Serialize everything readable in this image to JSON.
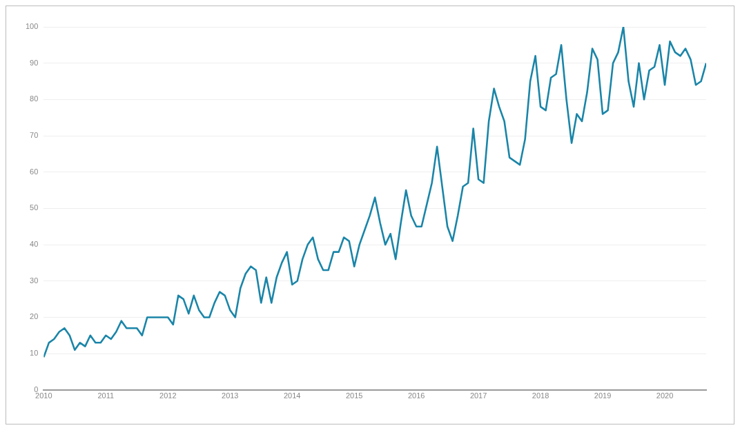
{
  "chart_data": {
    "type": "line",
    "x": [
      "2010-01",
      "2010-02",
      "2010-03",
      "2010-04",
      "2010-05",
      "2010-06",
      "2010-07",
      "2010-08",
      "2010-09",
      "2010-10",
      "2010-11",
      "2010-12",
      "2011-01",
      "2011-02",
      "2011-03",
      "2011-04",
      "2011-05",
      "2011-06",
      "2011-07",
      "2011-08",
      "2011-09",
      "2011-10",
      "2011-11",
      "2011-12",
      "2012-01",
      "2012-02",
      "2012-03",
      "2012-04",
      "2012-05",
      "2012-06",
      "2012-07",
      "2012-08",
      "2012-09",
      "2012-10",
      "2012-11",
      "2012-12",
      "2013-01",
      "2013-02",
      "2013-03",
      "2013-04",
      "2013-05",
      "2013-06",
      "2013-07",
      "2013-08",
      "2013-09",
      "2013-10",
      "2013-11",
      "2013-12",
      "2014-01",
      "2014-02",
      "2014-03",
      "2014-04",
      "2014-05",
      "2014-06",
      "2014-07",
      "2014-08",
      "2014-09",
      "2014-10",
      "2014-11",
      "2014-12",
      "2015-01",
      "2015-02",
      "2015-03",
      "2015-04",
      "2015-05",
      "2015-06",
      "2015-07",
      "2015-08",
      "2015-09",
      "2015-10",
      "2015-11",
      "2015-12",
      "2016-01",
      "2016-02",
      "2016-03",
      "2016-04",
      "2016-05",
      "2016-06",
      "2016-07",
      "2016-08",
      "2016-09",
      "2016-10",
      "2016-11",
      "2016-12",
      "2017-01",
      "2017-02",
      "2017-03",
      "2017-04",
      "2017-05",
      "2017-06",
      "2017-07",
      "2017-08",
      "2017-09",
      "2017-10",
      "2017-11",
      "2017-12",
      "2018-01",
      "2018-02",
      "2018-03",
      "2018-04",
      "2018-05",
      "2018-06",
      "2018-07",
      "2018-08",
      "2018-09",
      "2018-10",
      "2018-11",
      "2018-12",
      "2019-01",
      "2019-02",
      "2019-03",
      "2019-04",
      "2019-05",
      "2019-06",
      "2019-07",
      "2019-08",
      "2019-09",
      "2019-10",
      "2019-11",
      "2019-12",
      "2020-01",
      "2020-02",
      "2020-03",
      "2020-04",
      "2020-05",
      "2020-06",
      "2020-07",
      "2020-08",
      "2020-09"
    ],
    "series": [
      {
        "color": "#1a85a8",
        "values": [
          9,
          13,
          14,
          16,
          17,
          15,
          11,
          13,
          12,
          15,
          13,
          13,
          15,
          14,
          16,
          19,
          17,
          17,
          17,
          15,
          20,
          20,
          20,
          20,
          20,
          18,
          26,
          25,
          21,
          26,
          22,
          20,
          20,
          24,
          27,
          26,
          22,
          20,
          28,
          32,
          34,
          33,
          24,
          31,
          24,
          31,
          35,
          38,
          29,
          30,
          36,
          40,
          42,
          36,
          33,
          33,
          38,
          38,
          42,
          41,
          34,
          40,
          44,
          48,
          53,
          46,
          40,
          43,
          36,
          46,
          55,
          48,
          45,
          45,
          51,
          57,
          67,
          56,
          45,
          41,
          48,
          56,
          57,
          72,
          58,
          57,
          74,
          83,
          78,
          74,
          64,
          63,
          62,
          69,
          85,
          92,
          78,
          77,
          86,
          87,
          95,
          80,
          68,
          76,
          74,
          82,
          94,
          91,
          76,
          77,
          90,
          93,
          100,
          85,
          78,
          90,
          80,
          88,
          89,
          95,
          84,
          96,
          93,
          92,
          94,
          91,
          84,
          85,
          90
        ]
      }
    ],
    "xlim": [
      "2010-01",
      "2020-09"
    ],
    "xticks": [
      {
        "value": "2010",
        "label": "2010"
      },
      {
        "value": "2011",
        "label": "2011"
      },
      {
        "value": "2012",
        "label": "2012"
      },
      {
        "value": "2013",
        "label": "2013"
      },
      {
        "value": "2014",
        "label": "2014"
      },
      {
        "value": "2015",
        "label": "2015"
      },
      {
        "value": "2016",
        "label": "2016"
      },
      {
        "value": "2017",
        "label": "2017"
      },
      {
        "value": "2018",
        "label": "2018"
      },
      {
        "value": "2019",
        "label": "2019"
      },
      {
        "value": "2020",
        "label": "2020"
      }
    ],
    "ylim": [
      0,
      100
    ],
    "yticks": [
      0,
      10,
      20,
      30,
      40,
      50,
      60,
      70,
      80,
      90,
      100
    ],
    "grid": "y",
    "legend": false,
    "marker": "none",
    "line_style": "solid"
  }
}
